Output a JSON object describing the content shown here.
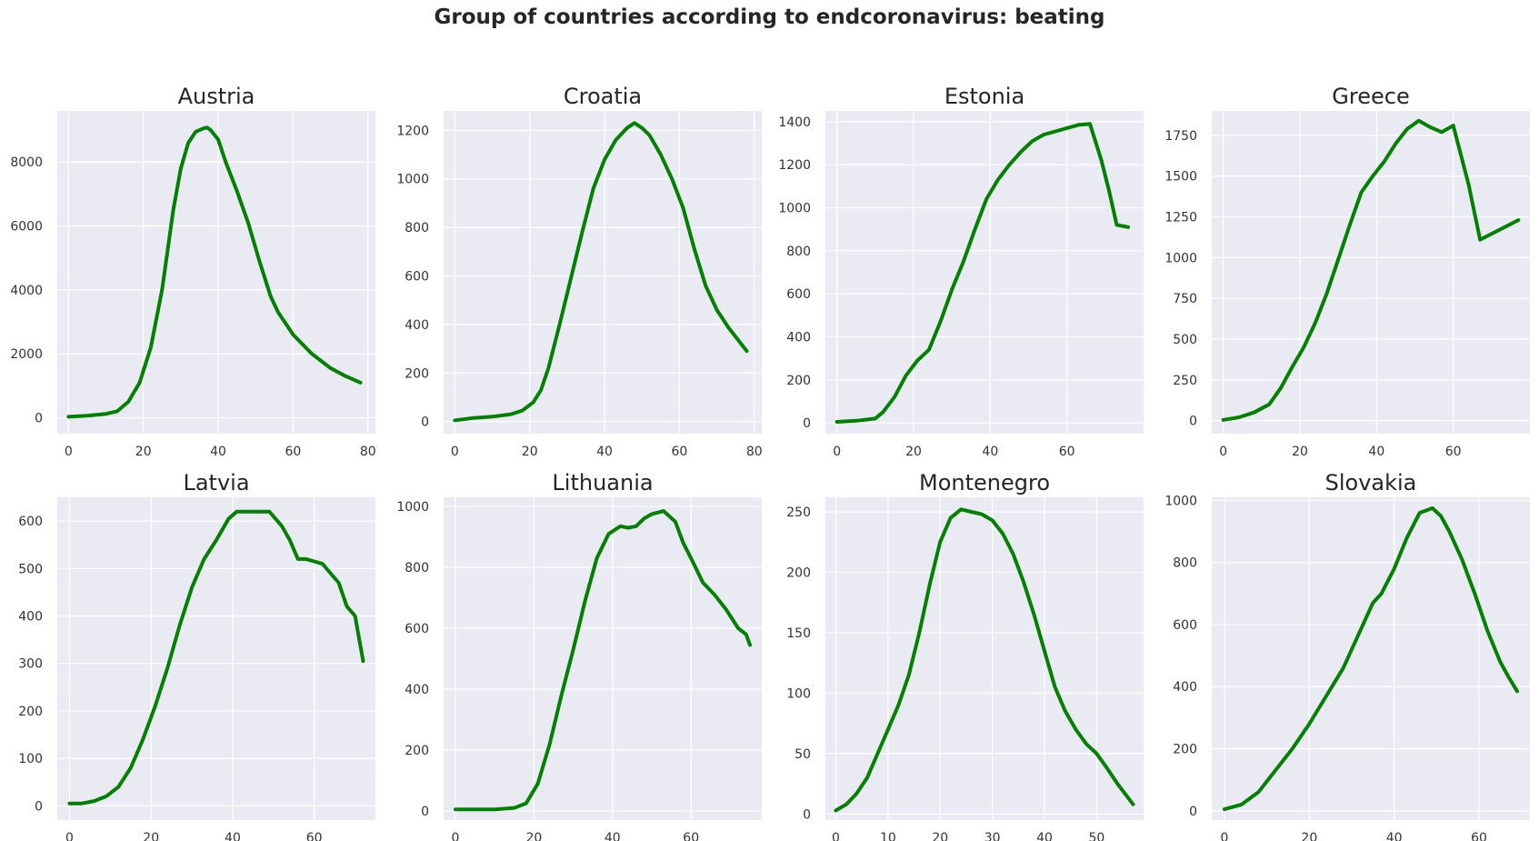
{
  "chart_data": {
    "title": "Group of countries according to endcoronavirus: beating",
    "type": "line",
    "colors": {
      "line": "#008000",
      "panel_bg": "#EAEAF2",
      "grid": "#FFFFFF"
    },
    "grid": true,
    "panels": [
      {
        "title": "Austria",
        "xlim": [
          -3,
          82
        ],
        "ylim": [
          -500,
          9600
        ],
        "xticks": [
          0,
          20,
          40,
          60,
          80
        ],
        "yticks": [
          0,
          2000,
          4000,
          6000,
          8000
        ],
        "x": [
          0,
          5,
          10,
          13,
          16,
          19,
          22,
          25,
          28,
          30,
          32,
          34,
          36,
          37,
          38,
          40,
          42,
          45,
          48,
          51,
          54,
          56,
          60,
          65,
          70,
          74,
          78
        ],
        "y": [
          30,
          60,
          120,
          200,
          500,
          1100,
          2200,
          4000,
          6500,
          7800,
          8600,
          8950,
          9050,
          9080,
          9000,
          8700,
          8000,
          7100,
          6100,
          4900,
          3800,
          3300,
          2600,
          2000,
          1550,
          1300,
          1100
        ]
      },
      {
        "title": "Croatia",
        "xlim": [
          -3,
          82
        ],
        "ylim": [
          -50,
          1280
        ],
        "xticks": [
          0,
          20,
          40,
          60,
          80
        ],
        "yticks": [
          0,
          200,
          400,
          600,
          800,
          1000,
          1200
        ],
        "x": [
          0,
          5,
          10,
          15,
          18,
          21,
          23,
          25,
          28,
          31,
          34,
          37,
          40,
          43,
          46,
          48,
          50,
          52,
          55,
          58,
          61,
          64,
          67,
          70,
          73,
          76,
          78
        ],
        "y": [
          5,
          15,
          20,
          30,
          45,
          80,
          130,
          220,
          400,
          590,
          780,
          960,
          1080,
          1160,
          1210,
          1230,
          1210,
          1180,
          1100,
          1000,
          880,
          710,
          560,
          460,
          390,
          330,
          290
        ]
      },
      {
        "title": "Estonia",
        "xlim": [
          -3,
          80
        ],
        "ylim": [
          -50,
          1450
        ],
        "xticks": [
          0,
          20,
          40,
          60
        ],
        "yticks": [
          0,
          200,
          400,
          600,
          800,
          1000,
          1200,
          1400
        ],
        "x": [
          0,
          5,
          10,
          12,
          15,
          18,
          21,
          24,
          27,
          30,
          33,
          36,
          39,
          42,
          45,
          48,
          51,
          54,
          57,
          60,
          63,
          66,
          69,
          71,
          73,
          76
        ],
        "y": [
          5,
          10,
          20,
          50,
          120,
          220,
          290,
          340,
          470,
          620,
          750,
          900,
          1040,
          1130,
          1200,
          1260,
          1310,
          1340,
          1355,
          1370,
          1385,
          1390,
          1220,
          1080,
          920,
          910
        ]
      },
      {
        "title": "Greece",
        "xlim": [
          -3,
          80
        ],
        "ylim": [
          -80,
          1900
        ],
        "xticks": [
          0,
          20,
          40,
          60
        ],
        "yticks": [
          0,
          250,
          500,
          750,
          1000,
          1250,
          1500,
          1750
        ],
        "x": [
          0,
          4,
          8,
          12,
          15,
          18,
          21,
          24,
          27,
          30,
          33,
          36,
          39,
          42,
          45,
          48,
          51,
          54,
          57,
          60,
          64,
          67,
          72,
          77
        ],
        "y": [
          5,
          20,
          50,
          100,
          200,
          330,
          450,
          600,
          780,
          990,
          1200,
          1400,
          1500,
          1590,
          1700,
          1790,
          1840,
          1800,
          1770,
          1810,
          1450,
          1110,
          1170,
          1230
        ]
      },
      {
        "title": "Latvia",
        "xlim": [
          -3,
          75
        ],
        "ylim": [
          -30,
          650
        ],
        "xticks": [
          0,
          20,
          40,
          60
        ],
        "yticks": [
          0,
          100,
          200,
          300,
          400,
          500,
          600
        ],
        "x": [
          0,
          3,
          6,
          9,
          12,
          15,
          18,
          21,
          24,
          27,
          30,
          33,
          36,
          39,
          41,
          43,
          45,
          47,
          49,
          52,
          54,
          56,
          58,
          60,
          62,
          64,
          66,
          68,
          70,
          72
        ],
        "y": [
          5,
          5,
          10,
          20,
          40,
          80,
          140,
          210,
          290,
          380,
          460,
          520,
          560,
          605,
          620,
          620,
          620,
          620,
          620,
          590,
          560,
          520,
          520,
          515,
          510,
          490,
          470,
          420,
          400,
          305
        ]
      },
      {
        "title": "Lithuania",
        "xlim": [
          -3,
          78
        ],
        "ylim": [
          -30,
          1030
        ],
        "xticks": [
          0,
          20,
          40,
          60
        ],
        "yticks": [
          0,
          200,
          400,
          600,
          800,
          1000
        ],
        "x": [
          0,
          5,
          10,
          15,
          18,
          21,
          24,
          27,
          30,
          33,
          36,
          39,
          42,
          44,
          46,
          48,
          50,
          53,
          56,
          58,
          60,
          63,
          66,
          69,
          72,
          74,
          75
        ],
        "y": [
          5,
          5,
          5,
          10,
          25,
          90,
          220,
          380,
          530,
          690,
          830,
          910,
          935,
          930,
          935,
          960,
          975,
          985,
          950,
          880,
          830,
          750,
          710,
          660,
          600,
          580,
          545
        ]
      },
      {
        "title": "Montenegro",
        "xlim": [
          -2,
          59
        ],
        "ylim": [
          -5,
          262
        ],
        "xticks": [
          0,
          10,
          20,
          30,
          40,
          50
        ],
        "yticks": [
          0,
          50,
          100,
          150,
          200,
          250
        ],
        "x": [
          0,
          2,
          4,
          6,
          8,
          10,
          12,
          14,
          16,
          18,
          20,
          22,
          24,
          26,
          28,
          30,
          32,
          34,
          36,
          38,
          40,
          42,
          44,
          46,
          48,
          50,
          52,
          54,
          57
        ],
        "y": [
          3,
          8,
          17,
          30,
          50,
          70,
          90,
          115,
          150,
          190,
          225,
          245,
          252,
          250,
          248,
          243,
          232,
          215,
          192,
          165,
          135,
          105,
          85,
          70,
          58,
          50,
          38,
          25,
          8
        ]
      },
      {
        "title": "Slovakia",
        "xlim": [
          -3,
          72
        ],
        "ylim": [
          -30,
          1010
        ],
        "xticks": [
          0,
          20,
          40,
          60
        ],
        "yticks": [
          0,
          200,
          400,
          600,
          800,
          1000
        ],
        "x": [
          0,
          4,
          8,
          12,
          16,
          20,
          24,
          28,
          32,
          35,
          37,
          40,
          43,
          46,
          49,
          51,
          53,
          56,
          59,
          62,
          65,
          67,
          69
        ],
        "y": [
          5,
          20,
          60,
          130,
          200,
          280,
          370,
          460,
          580,
          670,
          700,
          780,
          880,
          960,
          975,
          950,
          900,
          810,
          700,
          580,
          480,
          430,
          385
        ]
      }
    ]
  }
}
